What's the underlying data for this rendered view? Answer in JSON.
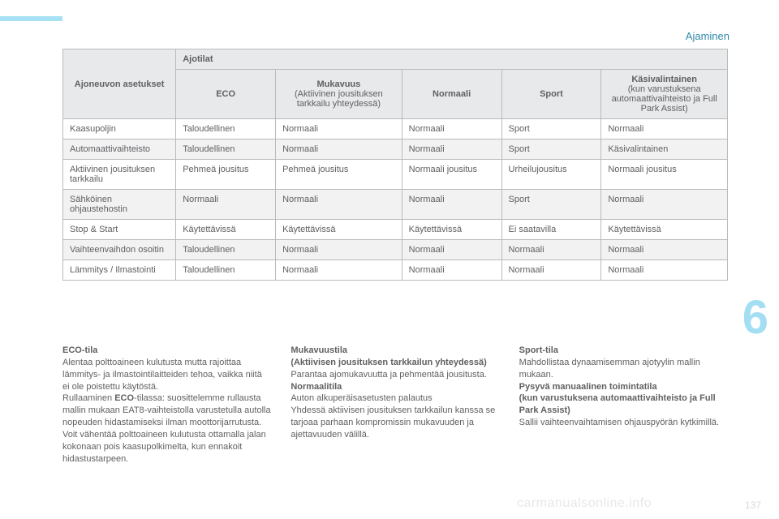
{
  "page": {
    "title": "Ajaminen",
    "chapter_number": "6",
    "watermark": "carmanualsonline.info",
    "page_number": "137"
  },
  "colors": {
    "accent_bar": "#a6e1f4",
    "title_text": "#2f87a8",
    "chapter_digit": "#a3def3",
    "text": "#5f6062",
    "border": "#b9babc",
    "header_bg": "#e8e9ea",
    "row_alt_bg": "#f2f2f3",
    "watermark": "#e8e8e8"
  },
  "table": {
    "top_header": "Ajotilat",
    "col_widths_pct": [
      17,
      15,
      19,
      15,
      15,
      19
    ],
    "columns": [
      {
        "bold": "Ajoneuvon asetukset",
        "sub": ""
      },
      {
        "bold": "ECO",
        "sub": ""
      },
      {
        "bold": "Mukavuus",
        "sub": "(Aktiivinen jousituksen tarkkailu yhteydessä)"
      },
      {
        "bold": "Normaali",
        "sub": ""
      },
      {
        "bold": "Sport",
        "sub": ""
      },
      {
        "bold": "Käsivalintainen",
        "sub": "(kun varustuksena automaattivaihteisto ja Full Park Assist)"
      }
    ],
    "rows": [
      [
        "Kaasupoljin",
        "Taloudellinen",
        "Normaali",
        "Normaali",
        "Sport",
        "Normaali"
      ],
      [
        "Automaattivaihteisto",
        "Taloudellinen",
        "Normaali",
        "Normaali",
        "Sport",
        "Käsivalintainen"
      ],
      [
        "Aktiivinen jousituksen tarkkailu",
        "Pehmeä jousitus",
        "Pehmeä jousitus",
        "Normaali jousitus",
        "Urheilujousitus",
        "Normaali jousitus"
      ],
      [
        "Sähköinen ohjaustehostin",
        "Normaali",
        "Normaali",
        "Normaali",
        "Sport",
        "Normaali"
      ],
      [
        "Stop & Start",
        "Käytettävissä",
        "Käytettävissä",
        "Käytettävissä",
        "Ei saatavilla",
        "Käytettävissä"
      ],
      [
        "Vaihteenvaihdon osoitin",
        "Taloudellinen",
        "Normaali",
        "Normaali",
        "Normaali",
        "Normaali"
      ],
      [
        "Lämmitys / Ilmastointi",
        "Taloudellinen",
        "Normaali",
        "Normaali",
        "Normaali",
        "Normaali"
      ]
    ]
  },
  "columns_text": {
    "c1": {
      "h1": "ECO-tila",
      "p1": "Alentaa polttoaineen kulutusta mutta rajoittaa lämmitys- ja ilmastointilaitteiden tehoa, vaikka niitä ei ole poistettu käytöstä.",
      "p2a": "Rullaaminen ",
      "p2b": "ECO",
      "p2c": "-tilassa: suosittelemme rullausta mallin mukaan EAT8-vaihteistolla varustetulla autolla nopeuden hidastamiseksi ilman moottorijarrutusta. Voit vähentää polttoaineen kulutusta ottamalla jalan kokonaan pois kaasupolkimelta, kun ennakoit hidastustarpeen."
    },
    "c2": {
      "h1": "Mukavuustila",
      "h1b": "(Aktiivisen jousituksen tarkkailun yhteydessä)",
      "p1": "Parantaa ajomukavuutta ja pehmentää jousitusta.",
      "h2": "Normaalitila",
      "p2": "Auton alkuperäisasetusten palautus",
      "p3": "Yhdessä aktiivisen jousituksen tarkkailun kanssa se tarjoaa parhaan kompromissin mukavuuden ja ajettavuuden välillä."
    },
    "c3": {
      "h1": "Sport-tila",
      "p1": "Mahdollistaa dynaamisemman ajotyylin mallin mukaan.",
      "h2": "Pysyvä manuaalinen toimintatila",
      "h2b": "(kun varustuksena automaattivaihteisto ja Full Park Assist)",
      "p2": "Sallii vaihteenvaihtamisen ohjauspyörän kytkimillä."
    }
  }
}
